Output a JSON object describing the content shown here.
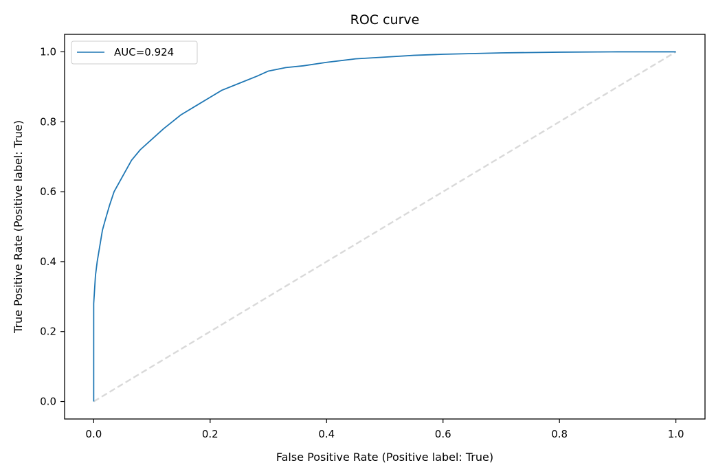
{
  "chart_data": {
    "type": "line",
    "title": "ROC curve",
    "xlabel": "False Positive Rate (Positive label: True)",
    "ylabel": "True Positive Rate (Positive label: True)",
    "xlim": [
      -0.05,
      1.05
    ],
    "ylim": [
      -0.05,
      1.05
    ],
    "x_ticks": [
      "0.0",
      "0.2",
      "0.4",
      "0.6",
      "0.8",
      "1.0"
    ],
    "y_ticks": [
      "0.0",
      "0.2",
      "0.4",
      "0.6",
      "0.8",
      "1.0"
    ],
    "grid": false,
    "legend_position": "upper-left",
    "series": [
      {
        "name": "AUC=0.924",
        "color": "#1f77b4",
        "style": "solid",
        "x": [
          0.0,
          0.0,
          0.003,
          0.006,
          0.01,
          0.015,
          0.02,
          0.027,
          0.035,
          0.045,
          0.055,
          0.065,
          0.08,
          0.1,
          0.12,
          0.15,
          0.18,
          0.2,
          0.22,
          0.25,
          0.28,
          0.3,
          0.33,
          0.36,
          0.4,
          0.45,
          0.5,
          0.55,
          0.6,
          0.7,
          0.8,
          0.9,
          1.0
        ],
        "y": [
          0.0,
          0.28,
          0.36,
          0.4,
          0.44,
          0.49,
          0.52,
          0.56,
          0.6,
          0.63,
          0.66,
          0.69,
          0.72,
          0.75,
          0.78,
          0.82,
          0.85,
          0.87,
          0.89,
          0.91,
          0.93,
          0.945,
          0.955,
          0.96,
          0.97,
          0.98,
          0.985,
          0.99,
          0.993,
          0.997,
          0.999,
          1.0,
          1.0
        ]
      },
      {
        "name": "",
        "color": "#d9d9d9",
        "style": "dashed",
        "x": [
          0.0,
          1.0
        ],
        "y": [
          0.0,
          1.0
        ]
      }
    ]
  }
}
